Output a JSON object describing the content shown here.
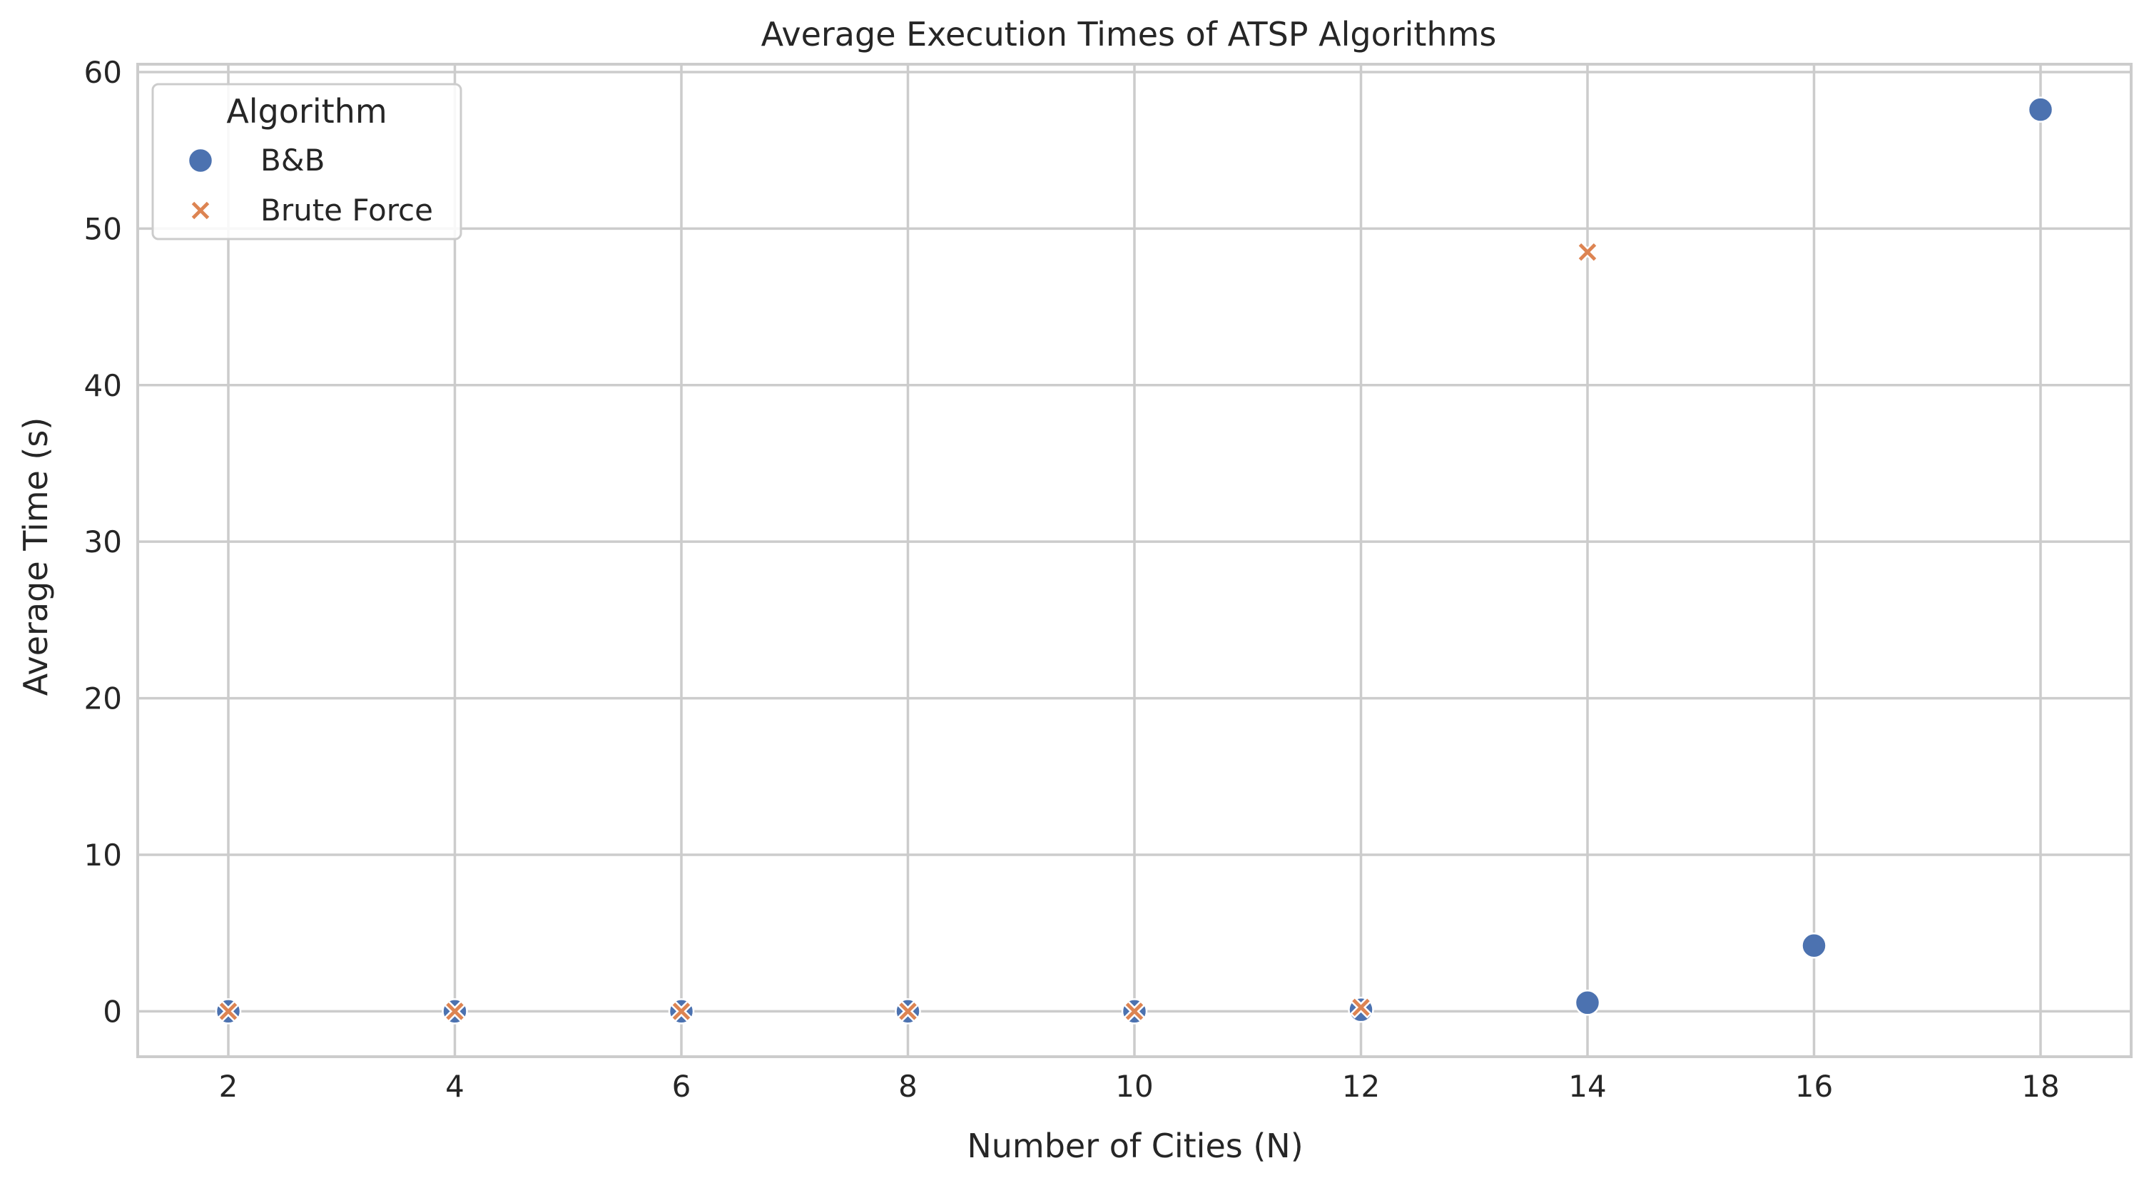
{
  "chart_data": {
    "type": "scatter",
    "title": "Average Execution Times of ATSP Algorithms",
    "xlabel": "Number of Cities (N)",
    "ylabel": "Average Time (s)",
    "xlim": [
      1.2,
      18.8
    ],
    "ylim": [
      -2.9,
      60.5
    ],
    "xticks": [
      2,
      4,
      6,
      8,
      10,
      12,
      14,
      16,
      18
    ],
    "yticks": [
      0,
      10,
      20,
      30,
      40,
      50,
      60
    ],
    "grid": true,
    "legend": {
      "title": "Algorithm",
      "placement": "top-left"
    },
    "series": [
      {
        "name": "B&B",
        "marker": "circle",
        "color": "#4c72b0",
        "x": [
          2,
          4,
          6,
          8,
          10,
          12,
          14,
          16,
          18
        ],
        "y": [
          0.0,
          0.0,
          0.0,
          0.0,
          0.0,
          0.1,
          0.55,
          4.2,
          57.6
        ]
      },
      {
        "name": "Brute Force",
        "marker": "x",
        "color": "#dd8452",
        "x": [
          2,
          4,
          6,
          8,
          10,
          12,
          14
        ],
        "y": [
          0.0,
          0.0,
          0.0,
          0.0,
          0.0,
          0.25,
          48.5
        ]
      }
    ]
  }
}
